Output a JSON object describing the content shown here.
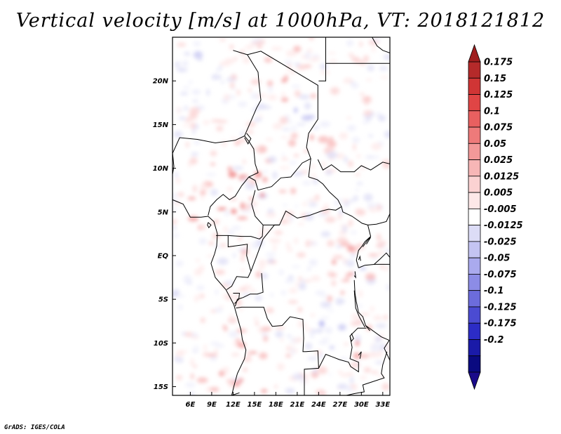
{
  "title": "Vertical velocity [m/s] at 1000hPa, VT: 2018121812",
  "credit": "GrADS: IGES/COLA",
  "map": {
    "lon_min": 3.5,
    "lon_max": 34,
    "lat_min": -16,
    "lat_max": 25,
    "lat_labels": [
      {
        "lat": 20,
        "label": "20N"
      },
      {
        "lat": 15,
        "label": "15N"
      },
      {
        "lat": 10,
        "label": "10N"
      },
      {
        "lat": 5,
        "label": "5N"
      },
      {
        "lat": 0,
        "label": "EQ"
      },
      {
        "lat": -5,
        "label": "5S"
      },
      {
        "lat": -10,
        "label": "10S"
      },
      {
        "lat": -15,
        "label": "15S"
      }
    ],
    "lon_labels": [
      {
        "lon": 6,
        "label": "6E"
      },
      {
        "lon": 9,
        "label": "9E"
      },
      {
        "lon": 12,
        "label": "12E"
      },
      {
        "lon": 15,
        "label": "15E"
      },
      {
        "lon": 18,
        "label": "18E"
      },
      {
        "lon": 21,
        "label": "21E"
      },
      {
        "lon": 24,
        "label": "24E"
      },
      {
        "lon": 27,
        "label": "27E"
      },
      {
        "lon": 30,
        "label": "30E"
      },
      {
        "lon": 33,
        "label": "33E"
      }
    ]
  },
  "colorbar": {
    "levels": [
      "0.175",
      "0.15",
      "0.125",
      "0.1",
      "0.075",
      "0.05",
      "0.025",
      "0.0125",
      "0.005",
      "-0.005",
      "-0.0125",
      "-0.025",
      "-0.05",
      "-0.075",
      "-0.1",
      "-0.125",
      "-0.175",
      "-0.2"
    ],
    "colors": [
      "#b52a2a",
      "#d03535",
      "#e04545",
      "#e86060",
      "#ee7a7a",
      "#f39999",
      "#f7b6b6",
      "#fbd2d2",
      "#fde8e8",
      "#ffffff",
      "#dcdcf6",
      "#c4c4f2",
      "#aaaaee",
      "#8c8ce6",
      "#6c6cdc",
      "#4b4bd2",
      "#2c2cc6",
      "#1a1aa8",
      "#0a0a80"
    ],
    "top_arrow_color": "#a01e1e",
    "bottom_arrow_color": "#1a0a8a"
  }
}
